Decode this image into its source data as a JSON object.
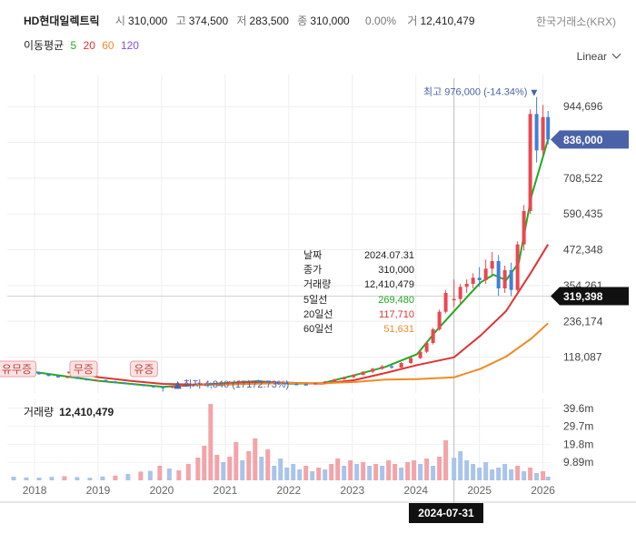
{
  "header": {
    "name": "HD현대일렉트릭",
    "open_label": "시",
    "open": "310,000",
    "high_label": "고",
    "high": "374,500",
    "low_label": "저",
    "low": "283,500",
    "close_label": "종",
    "close": "310,000",
    "change": "0.00%",
    "volume_label": "거",
    "volume": "12,410,479",
    "exchange": "한국거래소(KRX)"
  },
  "ma_legend": {
    "title": "이동평균",
    "items": [
      {
        "label": "5",
        "color": "#22aa22"
      },
      {
        "label": "20",
        "color": "#e03333"
      },
      {
        "label": "60",
        "color": "#f08a24"
      },
      {
        "label": "120",
        "color": "#8a4fd6"
      }
    ]
  },
  "scale_mode": "Linear",
  "tooltip": {
    "rows": [
      {
        "label": "날짜",
        "value": "2024.07.31",
        "color": "#222222"
      },
      {
        "label": "종가",
        "value": "310,000",
        "color": "#222222"
      },
      {
        "label": "거래량",
        "value": "12,410,479",
        "color": "#222222"
      },
      {
        "label": "5일선",
        "value": "269,480",
        "color": "#22aa22"
      },
      {
        "label": "20일선",
        "value": "117,710",
        "color": "#e03333"
      },
      {
        "label": "60일선",
        "value": "51,631",
        "color": "#f08a24"
      }
    ]
  },
  "volume_panel": {
    "title": "거래량",
    "value": "12,410,479"
  },
  "crosshair_date": "2024-07-31",
  "chart_data": {
    "type": "candlestick",
    "x_tick_labels": [
      "2018",
      "2019",
      "2020",
      "2021",
      "2022",
      "2023",
      "2024",
      "2025",
      "2026"
    ],
    "x_range": [
      2017.55,
      2026.1
    ],
    "ylim": [
      0,
      1050000
    ],
    "y_ticks": [
      944696,
      826609,
      708522,
      590435,
      472348,
      354261,
      236174,
      118087
    ],
    "y_tick_labels": [
      "944,696",
      "",
      "708,522",
      "590,435",
      "472,348",
      "354,261",
      "236,174",
      "118,087"
    ],
    "current_price": {
      "value": 836000,
      "label": "836,000",
      "color": "#4a63a8"
    },
    "crosshair_price": {
      "value": 319398,
      "label": "319,398",
      "color": "#111111"
    },
    "crosshair_x": 2024.58,
    "max_marker": {
      "x": 2025.82,
      "value": 976000,
      "label": "최고 976,000 (-14.34%)"
    },
    "min_marker": {
      "x": 2020.0,
      "value": 4840,
      "label": "최저 4,840 (17172.73%)"
    },
    "event_markers": [
      {
        "x": 2017.7,
        "label": "유무증"
      },
      {
        "x": 2018.75,
        "label": "무증"
      },
      {
        "x": 2019.7,
        "label": "유증"
      }
    ],
    "price_series": [
      {
        "x": 2017.6,
        "o": 80000,
        "h": 84000,
        "l": 76000,
        "c": 79000
      },
      {
        "x": 2017.75,
        "o": 79000,
        "h": 80000,
        "l": 71000,
        "c": 73000
      },
      {
        "x": 2017.9,
        "o": 73000,
        "h": 75000,
        "l": 66000,
        "c": 68000
      },
      {
        "x": 2018.05,
        "o": 68000,
        "h": 70000,
        "l": 60000,
        "c": 62000
      },
      {
        "x": 2018.2,
        "o": 62000,
        "h": 64000,
        "l": 55000,
        "c": 56000
      },
      {
        "x": 2018.35,
        "o": 56000,
        "h": 58000,
        "l": 50000,
        "c": 52000
      },
      {
        "x": 2018.5,
        "o": 52000,
        "h": 56000,
        "l": 49000,
        "c": 54000
      },
      {
        "x": 2018.65,
        "o": 54000,
        "h": 55000,
        "l": 46000,
        "c": 47000
      },
      {
        "x": 2018.8,
        "o": 47000,
        "h": 49000,
        "l": 41000,
        "c": 42000
      },
      {
        "x": 2018.95,
        "o": 42000,
        "h": 45000,
        "l": 40000,
        "c": 43000
      },
      {
        "x": 2019.1,
        "o": 43000,
        "h": 44000,
        "l": 37000,
        "c": 38000
      },
      {
        "x": 2019.25,
        "o": 38000,
        "h": 40000,
        "l": 33000,
        "c": 34000
      },
      {
        "x": 2019.4,
        "o": 34000,
        "h": 36000,
        "l": 30000,
        "c": 31000
      },
      {
        "x": 2019.55,
        "o": 31000,
        "h": 32000,
        "l": 26000,
        "c": 27000
      },
      {
        "x": 2019.7,
        "o": 27000,
        "h": 29000,
        "l": 22000,
        "c": 23000
      },
      {
        "x": 2019.85,
        "o": 23000,
        "h": 25000,
        "l": 18000,
        "c": 20000
      },
      {
        "x": 2020.0,
        "o": 20000,
        "h": 22000,
        "l": 4840,
        "c": 18000
      },
      {
        "x": 2020.15,
        "o": 18000,
        "h": 24000,
        "l": 15000,
        "c": 22000
      },
      {
        "x": 2020.3,
        "o": 22000,
        "h": 28000,
        "l": 20000,
        "c": 26000
      },
      {
        "x": 2020.45,
        "o": 26000,
        "h": 31000,
        "l": 24000,
        "c": 29000
      },
      {
        "x": 2020.6,
        "o": 29000,
        "h": 34000,
        "l": 26000,
        "c": 31000
      },
      {
        "x": 2020.75,
        "o": 31000,
        "h": 35000,
        "l": 28000,
        "c": 30000
      },
      {
        "x": 2020.9,
        "o": 30000,
        "h": 36000,
        "l": 28000,
        "c": 34000
      },
      {
        "x": 2021.05,
        "o": 34000,
        "h": 40000,
        "l": 32000,
        "c": 37000
      },
      {
        "x": 2021.2,
        "o": 37000,
        "h": 42000,
        "l": 34000,
        "c": 39000
      },
      {
        "x": 2021.35,
        "o": 39000,
        "h": 43000,
        "l": 36000,
        "c": 40000
      },
      {
        "x": 2021.5,
        "o": 40000,
        "h": 44000,
        "l": 36000,
        "c": 38000
      },
      {
        "x": 2021.65,
        "o": 38000,
        "h": 41000,
        "l": 33000,
        "c": 35000
      },
      {
        "x": 2021.8,
        "o": 35000,
        "h": 38000,
        "l": 31000,
        "c": 33000
      },
      {
        "x": 2021.95,
        "o": 33000,
        "h": 36000,
        "l": 29000,
        "c": 30000
      },
      {
        "x": 2022.1,
        "o": 30000,
        "h": 33000,
        "l": 27000,
        "c": 29000
      },
      {
        "x": 2022.25,
        "o": 29000,
        "h": 32000,
        "l": 26000,
        "c": 28000
      },
      {
        "x": 2022.4,
        "o": 28000,
        "h": 34000,
        "l": 27000,
        "c": 33000
      },
      {
        "x": 2022.55,
        "o": 33000,
        "h": 40000,
        "l": 31000,
        "c": 38000
      },
      {
        "x": 2022.7,
        "o": 38000,
        "h": 47000,
        "l": 36000,
        "c": 45000
      },
      {
        "x": 2022.85,
        "o": 45000,
        "h": 54000,
        "l": 43000,
        "c": 52000
      },
      {
        "x": 2023.0,
        "o": 52000,
        "h": 62000,
        "l": 50000,
        "c": 60000
      },
      {
        "x": 2023.15,
        "o": 60000,
        "h": 72000,
        "l": 58000,
        "c": 70000
      },
      {
        "x": 2023.3,
        "o": 70000,
        "h": 83000,
        "l": 66000,
        "c": 80000
      },
      {
        "x": 2023.45,
        "o": 80000,
        "h": 92000,
        "l": 76000,
        "c": 88000
      },
      {
        "x": 2023.6,
        "o": 88000,
        "h": 98000,
        "l": 80000,
        "c": 84000
      },
      {
        "x": 2023.75,
        "o": 84000,
        "h": 102000,
        "l": 82000,
        "c": 99000
      },
      {
        "x": 2023.9,
        "o": 99000,
        "h": 118000,
        "l": 96000,
        "c": 115000
      },
      {
        "x": 2024.05,
        "o": 115000,
        "h": 140000,
        "l": 112000,
        "c": 136000
      },
      {
        "x": 2024.15,
        "o": 136000,
        "h": 170000,
        "l": 132000,
        "c": 165000
      },
      {
        "x": 2024.25,
        "o": 165000,
        "h": 215000,
        "l": 160000,
        "c": 210000
      },
      {
        "x": 2024.35,
        "o": 210000,
        "h": 275000,
        "l": 205000,
        "c": 268000
      },
      {
        "x": 2024.45,
        "o": 268000,
        "h": 340000,
        "l": 262000,
        "c": 330000
      },
      {
        "x": 2024.58,
        "o": 310000,
        "h": 374500,
        "l": 283500,
        "c": 310000
      },
      {
        "x": 2024.68,
        "o": 310000,
        "h": 360000,
        "l": 290000,
        "c": 350000
      },
      {
        "x": 2024.78,
        "o": 350000,
        "h": 375000,
        "l": 330000,
        "c": 360000
      },
      {
        "x": 2024.88,
        "o": 360000,
        "h": 395000,
        "l": 345000,
        "c": 380000
      },
      {
        "x": 2024.98,
        "o": 380000,
        "h": 415000,
        "l": 350000,
        "c": 372000
      },
      {
        "x": 2025.08,
        "o": 372000,
        "h": 440000,
        "l": 360000,
        "c": 410000
      },
      {
        "x": 2025.18,
        "o": 410000,
        "h": 465000,
        "l": 390000,
        "c": 435000
      },
      {
        "x": 2025.28,
        "o": 435000,
        "h": 455000,
        "l": 320000,
        "c": 345000
      },
      {
        "x": 2025.38,
        "o": 345000,
        "h": 420000,
        "l": 330000,
        "c": 405000
      },
      {
        "x": 2025.48,
        "o": 405000,
        "h": 430000,
        "l": 320000,
        "c": 340000
      },
      {
        "x": 2025.58,
        "o": 340000,
        "h": 500000,
        "l": 335000,
        "c": 490000
      },
      {
        "x": 2025.68,
        "o": 490000,
        "h": 620000,
        "l": 470000,
        "c": 600000
      },
      {
        "x": 2025.78,
        "o": 600000,
        "h": 935000,
        "l": 590000,
        "c": 920000
      },
      {
        "x": 2025.88,
        "o": 920000,
        "h": 976000,
        "l": 760000,
        "c": 800000
      },
      {
        "x": 2025.98,
        "o": 800000,
        "h": 950000,
        "l": 780000,
        "c": 910000
      },
      {
        "x": 2026.06,
        "o": 910000,
        "h": 930000,
        "l": 820000,
        "c": 836000
      }
    ],
    "ma_series": [
      {
        "name": "5",
        "color": "#22aa22",
        "x": [
          2017.6,
          2018.5,
          2019.0,
          2019.5,
          2020.0,
          2020.5,
          2021.0,
          2021.5,
          2022.0,
          2022.5,
          2023.0,
          2023.5,
          2024.0,
          2024.3,
          2024.58,
          2024.8,
          2025.0,
          2025.2,
          2025.4,
          2025.6,
          2025.8,
          2026.06
        ],
        "values": [
          80000,
          54000,
          40000,
          30000,
          20000,
          26000,
          33000,
          39000,
          31000,
          32000,
          58000,
          86000,
          128000,
          205000,
          269480,
          320000,
          365000,
          390000,
          372000,
          430000,
          650000,
          836000
        ]
      },
      {
        "name": "20",
        "color": "#e03333",
        "x": [
          2018.5,
          2019.0,
          2019.5,
          2020.0,
          2020.5,
          2021.0,
          2021.5,
          2022.0,
          2022.5,
          2023.0,
          2023.5,
          2024.0,
          2024.58,
          2025.0,
          2025.4,
          2025.8,
          2026.06
        ],
        "values": [
          68000,
          52000,
          40000,
          30000,
          28000,
          30000,
          35000,
          34000,
          31000,
          42000,
          66000,
          92000,
          117710,
          190000,
          270000,
          400000,
          490000
        ]
      },
      {
        "name": "60",
        "color": "#f08a24",
        "x": [
          2020.5,
          2021.0,
          2021.5,
          2022.0,
          2022.5,
          2023.0,
          2023.5,
          2024.0,
          2024.58,
          2025.0,
          2025.4,
          2025.8,
          2026.06
        ],
        "values": [
          26000,
          28000,
          31000,
          33000,
          32000,
          36000,
          44000,
          46000,
          51631,
          80000,
          120000,
          180000,
          230000
        ]
      }
    ],
    "volume": {
      "ylim": [
        0,
        45000000
      ],
      "y_ticks": [
        39600000,
        29700000,
        19800000,
        9890000
      ],
      "y_tick_labels": [
        "39.6m",
        "29.7m",
        "19.8m",
        "9.89m"
      ],
      "bars": [
        {
          "x": 2017.65,
          "v": 2000000,
          "up": false
        },
        {
          "x": 2017.85,
          "v": 1600000,
          "up": false
        },
        {
          "x": 2018.05,
          "v": 1500000,
          "up": false
        },
        {
          "x": 2018.25,
          "v": 1900000,
          "up": false
        },
        {
          "x": 2018.45,
          "v": 2300000,
          "up": true
        },
        {
          "x": 2018.65,
          "v": 1800000,
          "up": false
        },
        {
          "x": 2018.85,
          "v": 1400000,
          "up": false
        },
        {
          "x": 2019.05,
          "v": 2100000,
          "up": false
        },
        {
          "x": 2019.25,
          "v": 2600000,
          "up": true
        },
        {
          "x": 2019.45,
          "v": 3500000,
          "up": false
        },
        {
          "x": 2019.65,
          "v": 4800000,
          "up": true
        },
        {
          "x": 2019.8,
          "v": 5200000,
          "up": false
        },
        {
          "x": 2019.95,
          "v": 8000000,
          "up": true
        },
        {
          "x": 2020.1,
          "v": 6500000,
          "up": false
        },
        {
          "x": 2020.25,
          "v": 5500000,
          "up": true
        },
        {
          "x": 2020.4,
          "v": 9000000,
          "up": true
        },
        {
          "x": 2020.55,
          "v": 12500000,
          "up": true
        },
        {
          "x": 2020.65,
          "v": 19000000,
          "up": true
        },
        {
          "x": 2020.75,
          "v": 42000000,
          "up": true
        },
        {
          "x": 2020.85,
          "v": 14000000,
          "up": true
        },
        {
          "x": 2020.95,
          "v": 10000000,
          "up": false
        },
        {
          "x": 2021.05,
          "v": 13000000,
          "up": true
        },
        {
          "x": 2021.15,
          "v": 21000000,
          "up": true
        },
        {
          "x": 2021.25,
          "v": 11000000,
          "up": false
        },
        {
          "x": 2021.35,
          "v": 16000000,
          "up": true
        },
        {
          "x": 2021.45,
          "v": 23000000,
          "up": true
        },
        {
          "x": 2021.55,
          "v": 13000000,
          "up": false
        },
        {
          "x": 2021.65,
          "v": 17000000,
          "up": true
        },
        {
          "x": 2021.75,
          "v": 8000000,
          "up": false
        },
        {
          "x": 2021.85,
          "v": 12000000,
          "up": false
        },
        {
          "x": 2021.95,
          "v": 7000000,
          "up": false
        },
        {
          "x": 2022.05,
          "v": 9000000,
          "up": false
        },
        {
          "x": 2022.15,
          "v": 6000000,
          "up": false
        },
        {
          "x": 2022.25,
          "v": 8000000,
          "up": true
        },
        {
          "x": 2022.35,
          "v": 5000000,
          "up": false
        },
        {
          "x": 2022.45,
          "v": 7000000,
          "up": true
        },
        {
          "x": 2022.55,
          "v": 6000000,
          "up": false
        },
        {
          "x": 2022.65,
          "v": 9000000,
          "up": true
        },
        {
          "x": 2022.75,
          "v": 12000000,
          "up": true
        },
        {
          "x": 2022.85,
          "v": 8000000,
          "up": false
        },
        {
          "x": 2022.95,
          "v": 11000000,
          "up": true
        },
        {
          "x": 2023.05,
          "v": 9000000,
          "up": false
        },
        {
          "x": 2023.15,
          "v": 10000000,
          "up": true
        },
        {
          "x": 2023.25,
          "v": 8000000,
          "up": false
        },
        {
          "x": 2023.35,
          "v": 9000000,
          "up": true
        },
        {
          "x": 2023.45,
          "v": 8000000,
          "up": false
        },
        {
          "x": 2023.55,
          "v": 11000000,
          "up": true
        },
        {
          "x": 2023.65,
          "v": 9000000,
          "up": true
        },
        {
          "x": 2023.75,
          "v": 7000000,
          "up": false
        },
        {
          "x": 2023.85,
          "v": 10000000,
          "up": true
        },
        {
          "x": 2023.95,
          "v": 11000000,
          "up": true
        },
        {
          "x": 2024.05,
          "v": 9000000,
          "up": false
        },
        {
          "x": 2024.15,
          "v": 12000000,
          "up": true
        },
        {
          "x": 2024.25,
          "v": 8000000,
          "up": false
        },
        {
          "x": 2024.35,
          "v": 13000000,
          "up": true
        },
        {
          "x": 2024.45,
          "v": 22000000,
          "up": true
        },
        {
          "x": 2024.58,
          "v": 12410479,
          "up": false
        },
        {
          "x": 2024.68,
          "v": 16000000,
          "up": false
        },
        {
          "x": 2024.78,
          "v": 11000000,
          "up": false
        },
        {
          "x": 2024.88,
          "v": 9000000,
          "up": false
        },
        {
          "x": 2024.98,
          "v": 7000000,
          "up": false
        },
        {
          "x": 2025.08,
          "v": 10000000,
          "up": false
        },
        {
          "x": 2025.18,
          "v": 6000000,
          "up": false
        },
        {
          "x": 2025.28,
          "v": 7000000,
          "up": false
        },
        {
          "x": 2025.38,
          "v": 9000000,
          "up": false
        },
        {
          "x": 2025.48,
          "v": 6000000,
          "up": false
        },
        {
          "x": 2025.58,
          "v": 8000000,
          "up": true
        },
        {
          "x": 2025.68,
          "v": 5000000,
          "up": false
        },
        {
          "x": 2025.78,
          "v": 7000000,
          "up": true
        },
        {
          "x": 2025.88,
          "v": 4000000,
          "up": false
        },
        {
          "x": 2025.98,
          "v": 5000000,
          "up": true
        },
        {
          "x": 2026.06,
          "v": 2000000,
          "up": false
        }
      ]
    }
  }
}
